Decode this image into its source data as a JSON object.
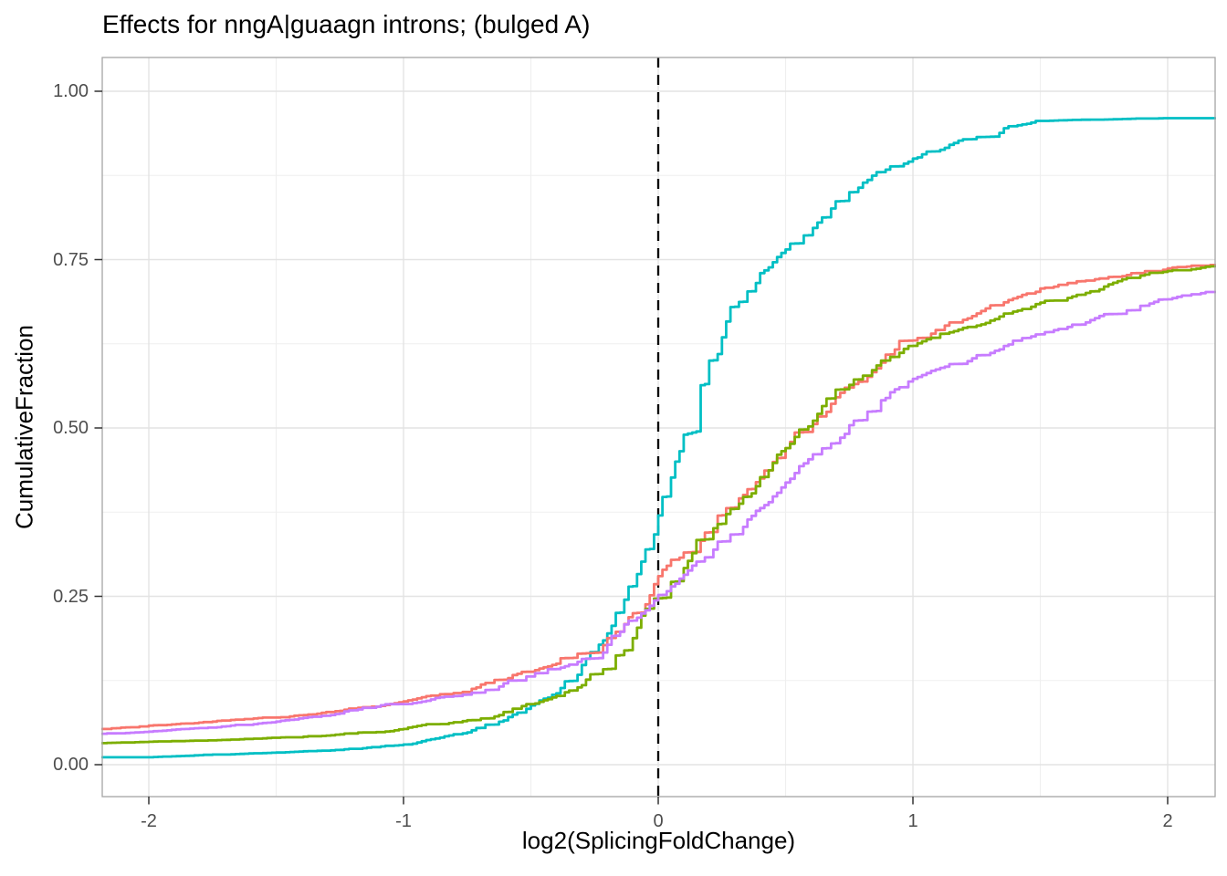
{
  "chart_data": {
    "type": "line",
    "subtype": "ecdf-cumulative-fraction-curves",
    "title": "Effects for nngA|guaagn introns; (bulged A)",
    "xlabel": "log2(SplicingFoldChange)",
    "ylabel": "CumulativeFraction",
    "xlim": [
      -2.18,
      2.19
    ],
    "ylim": [
      -0.05,
      1.05
    ],
    "x_ticks": [
      -2,
      -1,
      0,
      1,
      2
    ],
    "x_tick_labels": [
      "-2",
      "-1",
      "0",
      "1",
      "2"
    ],
    "y_ticks": [
      0.0,
      0.25,
      0.5,
      0.75,
      1.0
    ],
    "y_tick_labels": [
      "0.00",
      "0.25",
      "0.50",
      "0.75",
      "1.00"
    ],
    "x_minor_ticks": [
      -1.5,
      -0.5,
      0.5,
      1.5
    ],
    "y_minor_ticks": [
      0.125,
      0.375,
      0.625,
      0.875
    ],
    "grid": "major-and-minor",
    "legend": "none",
    "reference_line": {
      "x": 0,
      "style": "dashed",
      "color": "#000000"
    },
    "x": [
      -2.18,
      -2.0,
      -1.75,
      -1.5,
      -1.25,
      -1.0,
      -0.75,
      -0.5,
      -0.4,
      -0.3,
      -0.2,
      -0.1,
      0.0,
      0.1,
      0.2,
      0.3,
      0.4,
      0.5,
      0.625,
      0.75,
      0.875,
      1.0,
      1.125,
      1.25,
      1.375,
      1.5,
      1.75,
      2.0,
      2.19
    ],
    "series": [
      {
        "name": "teal",
        "color": "#00BFC4",
        "values": [
          0.011,
          0.011,
          0.015,
          0.018,
          0.022,
          0.03,
          0.048,
          0.088,
          0.106,
          0.148,
          0.195,
          0.265,
          0.37,
          0.49,
          0.6,
          0.68,
          0.73,
          0.765,
          0.805,
          0.85,
          0.88,
          0.9,
          0.916,
          0.932,
          0.948,
          0.956,
          0.958,
          0.96,
          0.96
        ]
      },
      {
        "name": "salmon",
        "color": "#F8766D",
        "values": [
          0.053,
          0.058,
          0.064,
          0.07,
          0.08,
          0.094,
          0.108,
          0.138,
          0.15,
          0.165,
          0.188,
          0.225,
          0.28,
          0.315,
          0.345,
          0.382,
          0.425,
          0.47,
          0.517,
          0.56,
          0.597,
          0.63,
          0.652,
          0.67,
          0.69,
          0.707,
          0.722,
          0.737,
          0.742
        ]
      },
      {
        "name": "olive-green",
        "color": "#7CAE00",
        "values": [
          0.032,
          0.034,
          0.036,
          0.04,
          0.045,
          0.053,
          0.066,
          0.09,
          0.102,
          0.118,
          0.142,
          0.188,
          0.247,
          0.292,
          0.335,
          0.38,
          0.427,
          0.47,
          0.521,
          0.564,
          0.6,
          0.622,
          0.64,
          0.652,
          0.67,
          0.686,
          0.71,
          0.733,
          0.74
        ]
      },
      {
        "name": "purple",
        "color": "#C77CFF",
        "values": [
          0.046,
          0.049,
          0.055,
          0.064,
          0.076,
          0.09,
          0.104,
          0.131,
          0.142,
          0.157,
          0.178,
          0.214,
          0.252,
          0.282,
          0.308,
          0.342,
          0.381,
          0.419,
          0.461,
          0.504,
          0.541,
          0.573,
          0.591,
          0.608,
          0.624,
          0.639,
          0.669,
          0.691,
          0.702
        ]
      }
    ],
    "colors": {
      "panel_background": "#ffffff",
      "panel_border": "#a5a5a5",
      "grid_major": "#e3e3e3",
      "grid_minor": "#efefef",
      "tick_mark": "#333333",
      "tick_text": "#4d4d4d",
      "title_text": "#000000"
    }
  }
}
